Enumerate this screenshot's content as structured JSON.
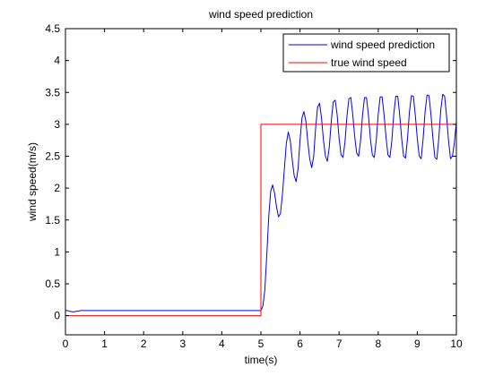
{
  "chart_data": {
    "type": "line",
    "title": "wind speed prediction",
    "xlabel": "time(s)",
    "ylabel": "wind speed(m/s)",
    "xlim": [
      0,
      10
    ],
    "ylim": [
      -0.3,
      4.5
    ],
    "xticks": [
      0,
      1,
      2,
      3,
      4,
      5,
      6,
      7,
      8,
      9,
      10
    ],
    "yticks": [
      0,
      0.5,
      1,
      1.5,
      2,
      2.5,
      3,
      3.5,
      4,
      4.5
    ],
    "xtick_labels": [
      "0",
      "1",
      "2",
      "3",
      "4",
      "5",
      "6",
      "7",
      "8",
      "9",
      "10"
    ],
    "ytick_labels": [
      "0",
      "0.5",
      "1",
      "1.5",
      "2",
      "2.5",
      "3",
      "3.5",
      "4",
      "4.5"
    ],
    "grid": false,
    "legend_position": "top-right",
    "series": [
      {
        "name": "wind speed prediction",
        "color": "#0000ff",
        "x": [
          0,
          0.05,
          0.1,
          0.2,
          0.3,
          0.4,
          0.5,
          1,
          2,
          3,
          4,
          4.5,
          4.9,
          5.0,
          5.05,
          5.1,
          5.15,
          5.2,
          5.25,
          5.3,
          5.35,
          5.4,
          5.45,
          5.5,
          5.55,
          5.6,
          5.65,
          5.7,
          5.75,
          5.8,
          5.85,
          5.9,
          5.95,
          6.0,
          6.05,
          6.1,
          6.15,
          6.2,
          6.25,
          6.3,
          6.35,
          6.4,
          6.45,
          6.5,
          6.55,
          6.6,
          6.65,
          6.7,
          6.75,
          6.8,
          6.85,
          6.9,
          6.95,
          7.0,
          7.05,
          7.1,
          7.15,
          7.2,
          7.25,
          7.3,
          7.35,
          7.4,
          7.45,
          7.5,
          7.55,
          7.6,
          7.65,
          7.7,
          7.75,
          7.8,
          7.85,
          7.9,
          7.95,
          8.0,
          8.05,
          8.1,
          8.15,
          8.2,
          8.25,
          8.3,
          8.35,
          8.4,
          8.45,
          8.5,
          8.55,
          8.6,
          8.65,
          8.7,
          8.75,
          8.8,
          8.85,
          8.9,
          8.95,
          9.0,
          9.05,
          9.1,
          9.15,
          9.2,
          9.25,
          9.3,
          9.35,
          9.4,
          9.45,
          9.5,
          9.55,
          9.6,
          9.65,
          9.7,
          9.75,
          9.8,
          9.85,
          9.9,
          9.95,
          10.0
        ],
        "values": [
          0.08,
          0.08,
          0.07,
          0.06,
          0.07,
          0.08,
          0.08,
          0.08,
          0.08,
          0.08,
          0.08,
          0.08,
          0.08,
          0.08,
          0.15,
          0.4,
          0.95,
          1.55,
          1.95,
          2.05,
          1.92,
          1.7,
          1.55,
          1.6,
          1.9,
          2.3,
          2.7,
          2.88,
          2.75,
          2.45,
          2.2,
          2.1,
          2.3,
          2.75,
          3.1,
          3.2,
          3.05,
          2.72,
          2.45,
          2.32,
          2.5,
          2.95,
          3.27,
          3.33,
          3.1,
          2.75,
          2.5,
          2.42,
          2.65,
          3.05,
          3.35,
          3.38,
          3.15,
          2.78,
          2.52,
          2.48,
          2.72,
          3.12,
          3.4,
          3.42,
          3.15,
          2.8,
          2.55,
          2.5,
          2.75,
          3.15,
          3.42,
          3.42,
          3.15,
          2.78,
          2.52,
          2.48,
          2.75,
          3.15,
          3.43,
          3.43,
          3.15,
          2.8,
          2.52,
          2.48,
          2.75,
          3.17,
          3.44,
          3.44,
          3.15,
          2.78,
          2.5,
          2.47,
          2.78,
          3.2,
          3.45,
          3.44,
          3.14,
          2.78,
          2.5,
          2.46,
          2.78,
          3.2,
          3.46,
          3.45,
          3.15,
          2.78,
          2.48,
          2.45,
          2.78,
          3.22,
          3.47,
          3.44,
          3.12,
          2.74,
          2.46,
          2.5,
          2.72,
          3.05
        ]
      },
      {
        "name": "true wind speed",
        "color": "#ff0000",
        "x": [
          0,
          5,
          5,
          10
        ],
        "values": [
          0,
          0,
          3,
          3
        ]
      }
    ]
  }
}
